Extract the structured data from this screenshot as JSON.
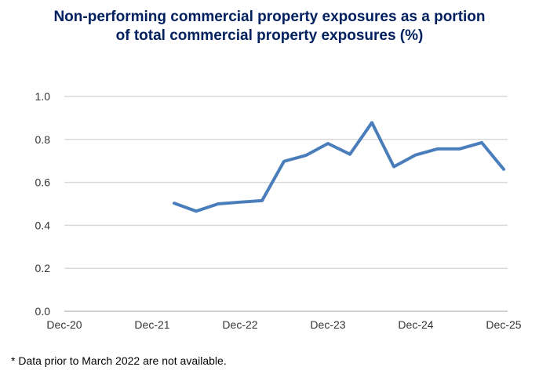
{
  "chart_data": {
    "type": "line",
    "title_lines": [
      "Non-performing commercial property exposures as a portion",
      "of total commercial property exposures (%)"
    ],
    "xlabel": "",
    "ylabel": "",
    "x_tick_labels": [
      "Dec-20",
      "Dec-21",
      "Dec-22",
      "Dec-23",
      "Dec-24",
      "Dec-25"
    ],
    "y_tick_labels": [
      "0.0",
      "0.2",
      "0.4",
      "0.6",
      "0.8",
      "1.0"
    ],
    "ylim": [
      0,
      1.0
    ],
    "xlim": [
      "Dec-20",
      "Dec-25"
    ],
    "grid": "horizontal",
    "line_color": "#4a7ebb",
    "x": [
      "Mar-22",
      "Jun-22",
      "Sep-22",
      "Dec-22",
      "Mar-23",
      "Jun-23",
      "Sep-23",
      "Dec-23",
      "Mar-24",
      "Jun-24",
      "Sep-24",
      "Dec-24",
      "Mar-25",
      "Jun-25",
      "Sep-25",
      "Dec-25"
    ],
    "values": [
      0.503,
      0.466,
      0.5,
      0.508,
      0.515,
      0.698,
      0.726,
      0.781,
      0.731,
      0.878,
      0.673,
      0.728,
      0.756,
      0.756,
      0.785,
      0.661
    ],
    "footnote": "* Data prior to March 2022 are not available."
  }
}
